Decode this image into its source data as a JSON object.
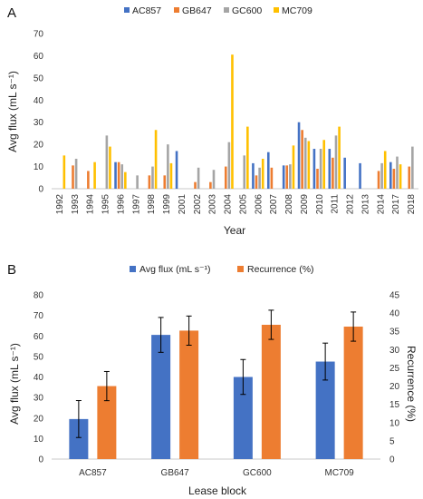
{
  "chart_data": [
    {
      "panel_label": "A",
      "type": "bar",
      "title": "",
      "xlabel": "Year",
      "ylabel": "Avg flux (mL s⁻¹)",
      "ylim": [
        0,
        70
      ],
      "yticks": [
        0,
        10,
        20,
        30,
        40,
        50,
        60,
        70
      ],
      "legend_position": "top",
      "grid": false,
      "categories": [
        "1992",
        "1993",
        "1994",
        "1995",
        "1996",
        "1997",
        "1998",
        "1999",
        "2001",
        "2002",
        "2003",
        "2004",
        "2005",
        "2006",
        "2007",
        "2008",
        "2009",
        "2010",
        "2011",
        "2012",
        "2013",
        "2014",
        "2017",
        "2018"
      ],
      "series": [
        {
          "name": "AC857",
          "color": "#4472c4",
          "values": [
            null,
            null,
            null,
            null,
            12,
            null,
            null,
            null,
            17,
            null,
            null,
            null,
            null,
            11.5,
            16.5,
            10.5,
            30,
            18,
            18,
            14,
            11.5,
            null,
            12,
            null
          ]
        },
        {
          "name": "GB647",
          "color": "#ed7d31",
          "values": [
            null,
            10.5,
            8,
            null,
            12,
            null,
            6,
            6,
            null,
            3,
            3,
            10,
            null,
            6,
            9.5,
            10.5,
            26.5,
            9,
            14,
            null,
            null,
            8,
            9,
            10
          ]
        },
        {
          "name": "GC600",
          "color": "#a5a5a5",
          "values": [
            null,
            13.5,
            null,
            24,
            11,
            6,
            10,
            20,
            null,
            9.5,
            8.5,
            21,
            15,
            9.5,
            null,
            11,
            23,
            18,
            24,
            null,
            null,
            11.5,
            14.5,
            19
          ]
        },
        {
          "name": "MC709",
          "color": "#ffc000",
          "values": [
            15,
            null,
            12,
            19,
            7.5,
            null,
            26.5,
            11.5,
            null,
            null,
            null,
            60.5,
            28,
            13.5,
            null,
            19.5,
            21.5,
            22,
            28,
            null,
            null,
            17,
            11,
            null
          ]
        }
      ]
    },
    {
      "panel_label": "B",
      "type": "bar",
      "title": "",
      "xlabel": "Lease block",
      "ylabel": "Avg flux (mL s⁻¹)",
      "ylabel_right": "Recurrence (%)",
      "ylim": [
        0,
        80
      ],
      "ylim_right": [
        0,
        45
      ],
      "yticks": [
        0,
        10,
        20,
        30,
        40,
        50,
        60,
        70,
        80
      ],
      "yticks_right": [
        0,
        5,
        10,
        15,
        20,
        25,
        30,
        35,
        40,
        45
      ],
      "legend_position": "top",
      "grid": false,
      "categories": [
        "AC857",
        "GB647",
        "GC600",
        "MC709"
      ],
      "series": [
        {
          "name": "Avg flux (mL s⁻¹)",
          "axis": "left",
          "color": "#4472c4",
          "values": [
            19.5,
            60.5,
            40,
            47.5
          ],
          "error": [
            9,
            8.5,
            8.5,
            9
          ]
        },
        {
          "name": "Recurrence (%)",
          "axis": "right",
          "color": "#ed7d31",
          "values": [
            20,
            35.2,
            36.8,
            36.3
          ],
          "error": [
            4,
            4,
            4,
            4
          ]
        }
      ]
    }
  ]
}
